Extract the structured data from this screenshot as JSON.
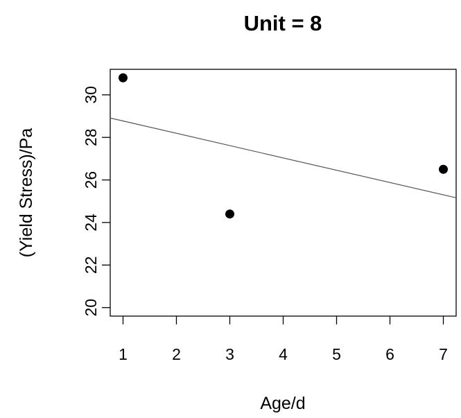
{
  "chart_data": {
    "type": "scatter",
    "title": "Unit = 8",
    "xlabel": "Age/d",
    "ylabel": "(Yield Stress)/Pa",
    "xlim": [
      0.76,
      7.24
    ],
    "ylim": [
      19.6,
      31.2
    ],
    "x_ticks": [
      1,
      2,
      3,
      4,
      5,
      6,
      7
    ],
    "y_ticks": [
      20,
      22,
      24,
      26,
      28,
      30
    ],
    "x_tick_labels": [
      "1",
      "2",
      "3",
      "4",
      "5",
      "6",
      "7"
    ],
    "y_tick_labels": [
      "20",
      "22",
      "24",
      "26",
      "28",
      "30"
    ],
    "points": [
      {
        "x": 1,
        "y": 30.8
      },
      {
        "x": 3,
        "y": 24.4
      },
      {
        "x": 7,
        "y": 26.5
      }
    ],
    "fit_line": {
      "intercept": 29.35,
      "slope": -0.5786
    },
    "grid": false,
    "legend": "none",
    "point_color": "#000000",
    "line_color": "#555555"
  }
}
